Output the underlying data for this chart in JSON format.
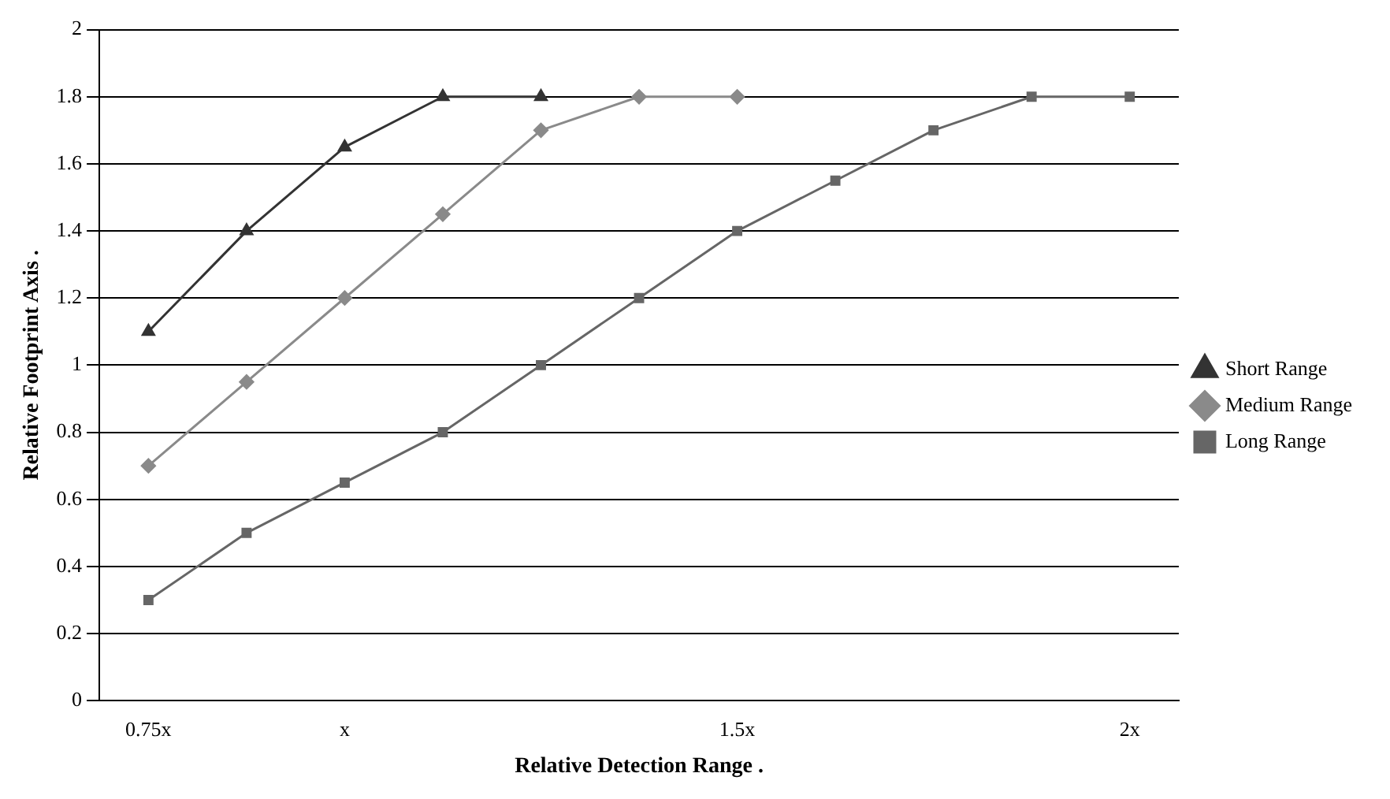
{
  "chart_data": {
    "type": "line",
    "xlabel": "Relative Detection Range .",
    "ylabel": "Relative Footprint Axis .",
    "categories": [
      "0.75x",
      null,
      "x",
      null,
      null,
      null,
      "1.5x",
      null,
      null,
      null,
      "2x"
    ],
    "series": [
      {
        "name": "Short Range",
        "color": "#333333",
        "marker": "triangle",
        "values": [
          1.1,
          1.4,
          1.65,
          1.8,
          1.8,
          null,
          null,
          null,
          null,
          null,
          null
        ]
      },
      {
        "name": "Medium Range",
        "color": "#8a8a8a",
        "marker": "diamond",
        "values": [
          0.7,
          0.95,
          1.2,
          1.45,
          1.7,
          1.8,
          1.8,
          null,
          null,
          null,
          null
        ]
      },
      {
        "name": "Long Range",
        "color": "#666666",
        "marker": "square",
        "values": [
          0.3,
          0.5,
          0.65,
          0.8,
          1.0,
          1.2,
          1.4,
          1.55,
          1.7,
          1.8,
          1.8
        ]
      }
    ],
    "ylim": [
      0,
      2
    ],
    "yticks": [
      0,
      0.2,
      0.4,
      0.6,
      0.8,
      1,
      1.2,
      1.4,
      1.6,
      1.8,
      2
    ],
    "grid": "y",
    "legend": "right",
    "line_style": "solid"
  }
}
